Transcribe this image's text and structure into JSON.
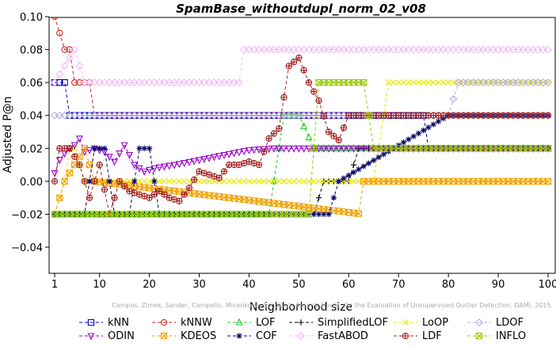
{
  "chart_data": {
    "type": "line",
    "title": "SpamBase_withoutdupl_norm_02_v08",
    "xlabel": "Neighborhood size",
    "ylabel": "Adjusted P@n",
    "xlim": [
      1,
      100
    ],
    "ylim": [
      -0.05,
      0.1
    ],
    "x_ticks": [
      1,
      10,
      20,
      30,
      40,
      50,
      60,
      70,
      80,
      90,
      100
    ],
    "y_ticks": [
      -0.04,
      -0.02,
      0.0,
      0.02,
      0.04,
      0.06,
      0.08,
      0.1
    ],
    "y_tick_labels": [
      "−0.04",
      "−0.02",
      "0.00",
      "0.02",
      "0.04",
      "0.06",
      "0.08",
      "0.10"
    ],
    "grid": false,
    "legend_placement": "bottom",
    "watermark": "Campos, Zimek, Sander, Campello, Micenkova, Schubert, Assent, Houle: On the Evaluation of Unsupervised Outlier Detection. DAMI, 2015.",
    "series": [
      {
        "name": "kNN",
        "color": "#0000cc",
        "marker": "square",
        "dash": "4,3",
        "points": [
          [
            1,
            0.06
          ],
          [
            2,
            0.06
          ],
          [
            3,
            0.06
          ],
          [
            4,
            0.04
          ],
          [
            5,
            0.04
          ],
          [
            75,
            0.04
          ],
          [
            76,
            0.02
          ],
          [
            100,
            0.02
          ]
        ]
      },
      {
        "name": "kNNW",
        "color": "#d42020",
        "marker": "circle",
        "dash": "4,3",
        "points": [
          [
            1,
            0.1
          ],
          [
            2,
            0.09
          ],
          [
            3,
            0.08
          ],
          [
            4,
            0.08
          ],
          [
            5,
            0.06
          ],
          [
            8,
            0.06
          ],
          [
            9,
            0.04
          ],
          [
            100,
            0.04
          ]
        ]
      },
      {
        "name": "LOF",
        "color": "#22cc22",
        "marker": "triangle",
        "dash": "4,3",
        "points": [
          [
            1,
            -0.02
          ],
          [
            44,
            -0.02
          ],
          [
            45,
            0.0
          ],
          [
            47,
            0.04
          ],
          [
            50,
            0.04
          ],
          [
            53,
            0.02
          ],
          [
            100,
            0.02
          ]
        ]
      },
      {
        "name": "SimplifiedLOF",
        "color": "#000000",
        "marker": "plus",
        "dash": "4,3",
        "points": [
          [
            1,
            -0.02
          ],
          [
            53,
            -0.02
          ],
          [
            55,
            0.0
          ],
          [
            60,
            0.0
          ],
          [
            62,
            0.02
          ],
          [
            100,
            0.02
          ]
        ]
      },
      {
        "name": "LoOP",
        "color": "#e8e800",
        "marker": "x",
        "dash": "4,3",
        "points": [
          [
            1,
            -0.02
          ],
          [
            3,
            0.0
          ],
          [
            4,
            0.02
          ],
          [
            5,
            0.02
          ],
          [
            7,
            0.0
          ],
          [
            65,
            0.0
          ],
          [
            67,
            0.04
          ],
          [
            68,
            0.06
          ],
          [
            100,
            0.06
          ]
        ]
      },
      {
        "name": "LDOF",
        "color": "#b0b0e8",
        "marker": "diamond",
        "dash": "4,3",
        "points": [
          [
            1,
            0.04
          ],
          [
            80,
            0.04
          ],
          [
            82,
            0.06
          ],
          [
            88,
            0.06
          ],
          [
            90,
            0.06
          ],
          [
            100,
            0.06
          ]
        ]
      },
      {
        "name": "ODIN",
        "color": "#9900cc",
        "marker": "triangle-down",
        "dash": "4,3",
        "points": [
          [
            1,
            0.005
          ],
          [
            2,
            0.013
          ],
          [
            3,
            0.017
          ],
          [
            4,
            0.02
          ],
          [
            5,
            0.022
          ],
          [
            6,
            0.026
          ],
          [
            7,
            0.018
          ],
          [
            9,
            0.02
          ],
          [
            11,
            0.018
          ],
          [
            13,
            0.012
          ],
          [
            15,
            0.022
          ],
          [
            17,
            0.01
          ],
          [
            19,
            0.006
          ],
          [
            21,
            0.008
          ],
          [
            25,
            0.01
          ],
          [
            30,
            0.013
          ],
          [
            35,
            0.016
          ],
          [
            40,
            0.019
          ],
          [
            45,
            0.02
          ],
          [
            50,
            0.02
          ],
          [
            100,
            0.02
          ]
        ]
      },
      {
        "name": "KDEOS",
        "color": "#f0a000",
        "marker": "square-x",
        "dash": "4,3",
        "points": [
          [
            1,
            -0.02
          ],
          [
            3,
            0.0
          ],
          [
            7,
            0.02
          ],
          [
            9,
            0.0
          ],
          [
            63,
            -0.02
          ],
          [
            63,
            0.0
          ],
          [
            70,
            0.0
          ],
          [
            76,
            0.0
          ],
          [
            100,
            0.0
          ]
        ]
      },
      {
        "name": "COF",
        "color": "#000066",
        "marker": "star",
        "dash": "4,3",
        "points": [
          [
            1,
            -0.02
          ],
          [
            7,
            -0.02
          ],
          [
            9,
            0.02
          ],
          [
            11,
            0.02
          ],
          [
            13,
            -0.02
          ],
          [
            16,
            -0.02
          ],
          [
            18,
            0.02
          ],
          [
            20,
            0.02
          ],
          [
            22,
            -0.02
          ],
          [
            56,
            -0.02
          ],
          [
            58,
            0.0
          ],
          [
            80,
            0.04
          ],
          [
            100,
            0.04
          ]
        ]
      },
      {
        "name": "FastABOD",
        "color": "#f4b8f4",
        "marker": "diamond",
        "dash": "4,3",
        "points": [
          [
            1,
            0.06
          ],
          [
            5,
            0.08
          ],
          [
            7,
            0.06
          ],
          [
            38,
            0.06
          ],
          [
            39,
            0.08
          ],
          [
            100,
            0.08
          ]
        ]
      },
      {
        "name": "LDF",
        "color": "#a02020",
        "marker": "circle-plus",
        "dash": "4,3",
        "points": [
          [
            1,
            0.0
          ],
          [
            2,
            0.02
          ],
          [
            4,
            0.02
          ],
          [
            6,
            0.01
          ],
          [
            8,
            -0.01
          ],
          [
            10,
            0.01
          ],
          [
            12,
            -0.02
          ],
          [
            14,
            0.0
          ],
          [
            16,
            -0.006
          ],
          [
            18,
            -0.008
          ],
          [
            20,
            -0.01
          ],
          [
            22,
            -0.006
          ],
          [
            24,
            -0.01
          ],
          [
            26,
            -0.012
          ],
          [
            28,
            -0.004
          ],
          [
            30,
            0.006
          ],
          [
            32,
            0.004
          ],
          [
            34,
            0.002
          ],
          [
            36,
            0.01
          ],
          [
            38,
            0.01
          ],
          [
            40,
            0.012
          ],
          [
            42,
            0.01
          ],
          [
            44,
            0.026
          ],
          [
            46,
            0.032
          ],
          [
            48,
            0.07
          ],
          [
            50,
            0.075
          ],
          [
            52,
            0.06
          ],
          [
            54,
            0.049
          ],
          [
            56,
            0.03
          ],
          [
            58,
            0.025
          ],
          [
            60,
            0.04
          ],
          [
            100,
            0.04
          ]
        ]
      },
      {
        "name": "INFLO",
        "color": "#99cc00",
        "marker": "square-x",
        "dash": "4,3",
        "points": [
          [
            1,
            -0.02
          ],
          [
            52,
            -0.02
          ],
          [
            54,
            0.06
          ],
          [
            63,
            0.06
          ],
          [
            65,
            0.02
          ],
          [
            100,
            0.02
          ]
        ]
      }
    ]
  }
}
